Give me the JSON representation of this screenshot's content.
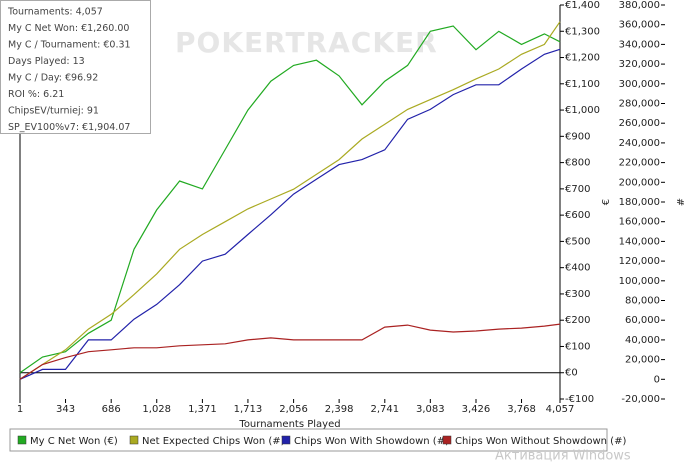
{
  "chart_data": {
    "type": "line",
    "watermark": "POKERTRACKER",
    "stats": [
      "Tournaments: 4,057",
      "My C Net Won: €1,260.00",
      "My C / Tournament: €0.31",
      "Days Played: 13",
      "My C / Day: €96.92",
      "ROI %: 6.21",
      "ChipsEV/turniej: 91",
      "SP_EV100%v7: €1,904.07"
    ],
    "xlabel": "Tournaments Played",
    "ylabel": "€",
    "y2label": "#",
    "xlim": [
      1,
      4057
    ],
    "xticks": [
      1,
      343,
      686,
      {
        "value": 1028,
        "label": "1,028"
      },
      {
        "value": 1371,
        "label": "1,371"
      },
      {
        "value": 1713,
        "label": "1,713"
      },
      {
        "value": 2056,
        "label": "2,056"
      },
      {
        "value": 2398,
        "label": "2,398"
      },
      {
        "value": 2741,
        "label": "2,741"
      },
      {
        "value": 3083,
        "label": "3,083"
      },
      {
        "value": 3426,
        "label": "3,426"
      },
      {
        "value": 3768,
        "label": "3,768"
      },
      {
        "value": 4057,
        "label": "4,057"
      }
    ],
    "ylim": [
      -100,
      1400
    ],
    "yticks": [
      {
        "value": -100,
        "label": "-€100"
      },
      {
        "value": 0,
        "label": "€0"
      },
      {
        "value": 100,
        "label": "€100"
      },
      {
        "value": 200,
        "label": "€200"
      },
      {
        "value": 300,
        "label": "€300"
      },
      {
        "value": 400,
        "label": "€400"
      },
      {
        "value": 500,
        "label": "€500"
      },
      {
        "value": 600,
        "label": "€600"
      },
      {
        "value": 700,
        "label": "€700"
      },
      {
        "value": 800,
        "label": "€800"
      },
      {
        "value": 900,
        "label": "€900"
      },
      {
        "value": 1000,
        "label": "€1,000"
      },
      {
        "value": 1100,
        "label": "€1,100"
      },
      {
        "value": 1200,
        "label": "€1,200"
      },
      {
        "value": 1300,
        "label": "€1,300"
      },
      {
        "value": 1400,
        "label": "€1,400"
      }
    ],
    "y2lim": [
      -20000,
      380000
    ],
    "y2ticks": [
      {
        "value": -20000,
        "label": "-20,000"
      },
      0,
      {
        "value": 20000,
        "label": "20,000"
      },
      {
        "value": 40000,
        "label": "40,000"
      },
      {
        "value": 60000,
        "label": "60,000"
      },
      {
        "value": 80000,
        "label": "80,000"
      },
      {
        "value": 100000,
        "label": "100,000"
      },
      {
        "value": 120000,
        "label": "120,000"
      },
      {
        "value": 140000,
        "label": "140,000"
      },
      {
        "value": 160000,
        "label": "160,000"
      },
      {
        "value": 180000,
        "label": "180,000"
      },
      {
        "value": 200000,
        "label": "200,000"
      },
      {
        "value": 220000,
        "label": "220,000"
      },
      {
        "value": 240000,
        "label": "240,000"
      },
      {
        "value": 260000,
        "label": "260,000"
      },
      {
        "value": 280000,
        "label": "280,000"
      },
      {
        "value": 300000,
        "label": "300,000"
      },
      {
        "value": 320000,
        "label": "320,000"
      },
      {
        "value": 340000,
        "label": "340,000"
      },
      {
        "value": 360000,
        "label": "360,000"
      },
      {
        "value": 380000,
        "label": "380,000"
      }
    ],
    "x": [
      1,
      170,
      343,
      515,
      686,
      857,
      1028,
      1200,
      1371,
      1542,
      1713,
      1885,
      2056,
      2227,
      2398,
      2570,
      2741,
      2912,
      3083,
      3255,
      3426,
      3597,
      3768,
      3940,
      4057
    ],
    "series": [
      {
        "name": "My C Net Won (€)",
        "color": "#22aa22",
        "values": [
          0,
          60,
          80,
          150,
          200,
          470,
          620,
          730,
          700,
          850,
          1000,
          1110,
          1170,
          1190,
          1130,
          1020,
          1110,
          1170,
          1300,
          1320,
          1230,
          1300,
          1250,
          1290,
          1260
        ]
      },
      {
        "name": "Net Expected Chips Won (#)",
        "color": "#aaaa22",
        "axis": "y2",
        "values": [
          0,
          15000,
          30000,
          51000,
          66000,
          86000,
          107000,
          132000,
          147000,
          160000,
          173000,
          183000,
          193000,
          208000,
          223000,
          244000,
          259000,
          274000,
          284000,
          294000,
          305000,
          315000,
          330000,
          340000,
          363000
        ]
      },
      {
        "name": "Chips Won With Showdown (#)",
        "color": "#2222aa",
        "axis": "y2",
        "values": [
          0,
          10000,
          10000,
          40000,
          40000,
          61000,
          76000,
          96000,
          120000,
          127000,
          147000,
          167000,
          188000,
          203000,
          218000,
          223000,
          233000,
          264000,
          274000,
          289000,
          299000,
          299000,
          315000,
          330000,
          335000
        ]
      },
      {
        "name": "Chips Won Without Showdown (#)",
        "color": "#aa2222",
        "axis": "y2",
        "values": [
          0,
          15000,
          22000,
          28000,
          30000,
          32000,
          32000,
          34000,
          35000,
          36000,
          40000,
          42000,
          40000,
          40000,
          40000,
          40000,
          53000,
          55000,
          50000,
          48000,
          49000,
          51000,
          52000,
          54000,
          56000
        ]
      }
    ],
    "os_notice": "Активация Windows"
  }
}
